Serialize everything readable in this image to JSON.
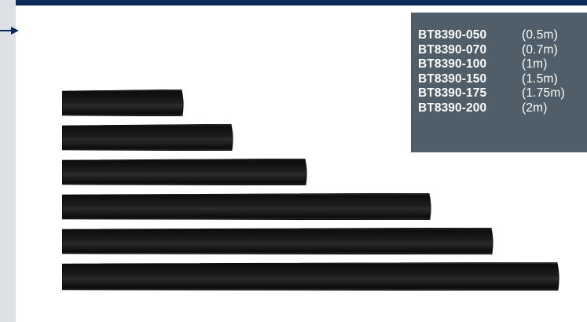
{
  "colors": {
    "header_bar": "#0b2a57",
    "side_rail": "#dde1e6",
    "spec_box_background": "#4f5e68",
    "spec_text": "#ffffff",
    "tube": "#141414"
  },
  "icons": {
    "pointer": "arrow-right-icon"
  },
  "spec_table": {
    "rows": [
      {
        "code": "BT8390-050",
        "length": "(0.5m)"
      },
      {
        "code": "BT8390-070",
        "length": "(0.7m)"
      },
      {
        "code": "BT8390-100",
        "length": "(1m)"
      },
      {
        "code": "BT8390-150",
        "length": "(1.5m)"
      },
      {
        "code": "BT8390-175",
        "length": "(1.75m)"
      },
      {
        "code": "BT8390-200",
        "length": "(2m)"
      }
    ]
  }
}
